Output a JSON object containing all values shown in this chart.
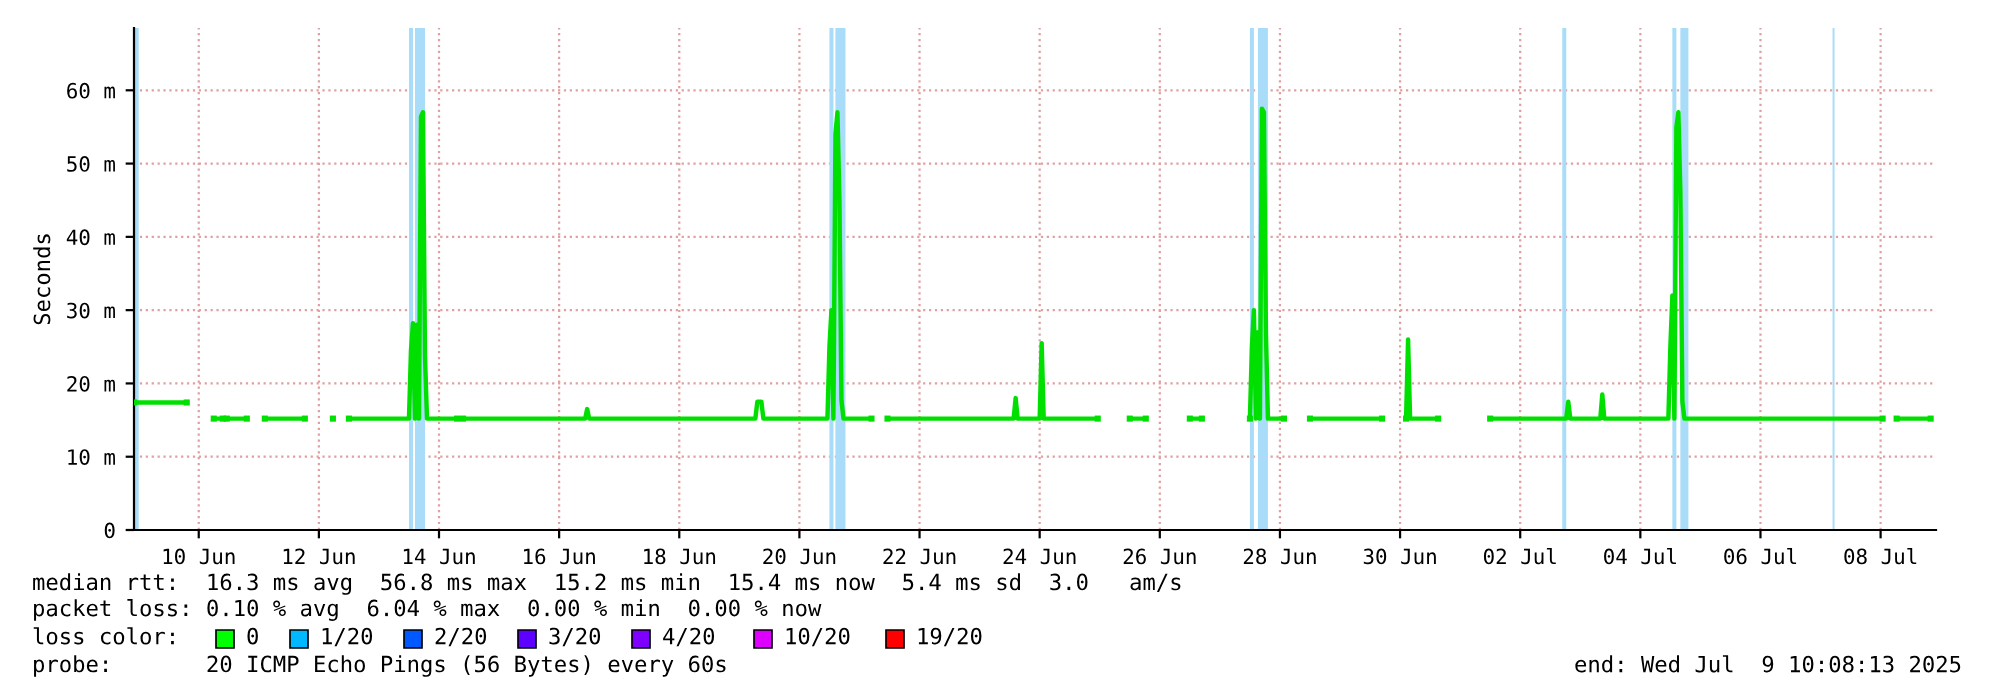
{
  "chart_data": {
    "type": "line",
    "ylabel": "Seconds",
    "x": [
      "2025-06-09T10:08",
      "2025-06-10T07:12",
      "2025-06-10T07:26",
      "2025-06-10T18:00",
      "2025-06-10T21:36",
      "2025-06-10T21:41",
      "2025-06-10T23:12",
      "2025-06-11T07:12",
      "2025-06-11T07:26",
      "2025-06-11T14:24",
      "2025-06-12T06:24",
      "2025-06-12T06:29",
      "2025-06-12T17:36",
      "2025-06-12T17:46",
      "2025-06-13T00:00",
      "2025-06-14T00:00",
      "2025-06-14T00:48",
      "2025-06-14T01:36",
      "2025-06-14T02:24",
      "2025-06-14T03:12",
      "2025-06-14T04:00",
      "2025-06-14T04:48",
      "2025-06-14T05:36",
      "2025-06-14T06:24",
      "2025-06-14T07:12",
      "2025-06-14T19:12",
      "2025-06-14T19:26",
      "2025-06-14T21:36",
      "2025-06-16T22:24",
      "2025-06-16T23:12",
      "2025-06-17T00:00",
      "2025-06-19T18:24",
      "2025-06-19T19:12",
      "2025-06-19T20:48",
      "2025-06-19T21:36",
      "2025-06-20T23:12",
      "2025-06-21T00:00",
      "2025-06-21T00:48",
      "2025-06-21T01:36",
      "2025-06-21T02:24",
      "2025-06-21T03:12",
      "2025-06-21T04:00",
      "2025-06-21T04:48",
      "2025-06-21T05:36",
      "2025-06-21T06:24",
      "2025-06-21T16:48",
      "2025-06-21T17:02",
      "2025-06-21T23:12",
      "2025-06-23T12:48",
      "2025-06-23T16:48",
      "2025-06-23T20:48",
      "2025-06-24T01:36",
      "2025-06-24T02:24",
      "2025-06-24T03:12",
      "2025-06-24T06:24",
      "2025-06-24T12:00",
      "2025-06-24T12:48",
      "2025-06-24T13:36",
      "2025-06-25T11:12",
      "2025-06-25T11:17",
      "2025-06-26T00:00",
      "2025-06-26T06:24",
      "2025-06-26T06:29",
      "2025-06-27T00:00",
      "2025-06-27T04:48",
      "2025-06-27T05:02",
      "2025-06-28T00:00",
      "2025-06-28T00:48",
      "2025-06-28T01:36",
      "2025-06-28T02:24",
      "2025-06-28T03:12",
      "2025-06-28T04:00",
      "2025-06-28T04:48",
      "2025-06-28T05:36",
      "2025-06-28T06:24",
      "2025-06-28T07:12",
      "2025-06-28T13:36",
      "2025-06-28T13:41",
      "2025-06-29T00:00",
      "2025-06-30T04:48",
      "2025-06-30T05:02",
      "2025-06-30T14:24",
      "2025-06-30T15:12",
      "2025-06-30T16:00",
      "2025-07-01T03:12",
      "2025-07-01T03:22",
      "2025-07-02T00:00",
      "2025-07-03T06:24",
      "2025-07-03T07:12",
      "2025-07-03T08:00",
      "2025-07-03T10:24",
      "2025-07-03T20:00",
      "2025-07-03T20:48",
      "2025-07-03T21:36",
      "2025-07-04T20:48",
      "2025-07-04T23:12",
      "2025-07-05T00:00",
      "2025-07-05T00:48",
      "2025-07-05T01:36",
      "2025-07-05T02:24",
      "2025-07-05T03:12",
      "2025-07-05T04:00",
      "2025-07-05T04:48",
      "2025-07-05T05:36",
      "2025-07-05T06:24",
      "2025-07-05T07:12",
      "2025-07-08T12:48",
      "2025-07-08T13:00",
      "2025-07-08T18:24",
      "2025-07-09T08:00"
    ],
    "series": [
      {
        "color": "#00e000",
        "values": [
          17.4,
          17.4,
          null,
          15.2,
          15.2,
          null,
          15.2,
          15.2,
          null,
          15.2,
          15.2,
          null,
          15.2,
          null,
          15.2,
          15.2,
          24.5,
          28.2,
          15.2,
          28,
          15.2,
          56.4,
          57,
          23.7,
          15.2,
          15.2,
          null,
          15.2,
          15.2,
          16.5,
          15.2,
          15.2,
          17.5,
          17.5,
          15.2,
          15.2,
          25,
          30,
          15.2,
          54,
          57,
          45,
          17.7,
          15.2,
          15.2,
          15.2,
          null,
          15.2,
          15.2,
          15.2,
          15.2,
          15.2,
          18,
          15.2,
          15.2,
          15.2,
          25.5,
          15.2,
          15.2,
          null,
          15.2,
          15.2,
          null,
          15.2,
          15.2,
          null,
          15.2,
          25,
          30,
          15.2,
          27,
          15.2,
          57.5,
          57,
          27,
          15.2,
          15.2,
          null,
          15.2,
          15.2,
          null,
          15.2,
          26,
          15.2,
          15.2,
          null,
          15.2,
          15.2,
          17.5,
          15.2,
          15.2,
          15.2,
          18.5,
          15.2,
          15.2,
          15.2,
          25,
          32,
          15.2,
          55,
          57,
          46,
          17.5,
          15.2,
          15.2,
          15.2,
          15.2,
          null,
          15.2,
          15.2
        ]
      }
    ],
    "xlim": [
      "2025-06-09T10:08",
      "2025-07-09T10:08"
    ],
    "xticks": [
      {
        "value": "2025-06-10T12:00",
        "label": "10 Jun"
      },
      {
        "value": "2025-06-12T12:00",
        "label": "12 Jun"
      },
      {
        "value": "2025-06-14T12:00",
        "label": "14 Jun"
      },
      {
        "value": "2025-06-16T12:00",
        "label": "16 Jun"
      },
      {
        "value": "2025-06-18T12:00",
        "label": "18 Jun"
      },
      {
        "value": "2025-06-20T12:00",
        "label": "20 Jun"
      },
      {
        "value": "2025-06-22T12:00",
        "label": "22 Jun"
      },
      {
        "value": "2025-06-24T12:00",
        "label": "24 Jun"
      },
      {
        "value": "2025-06-26T12:00",
        "label": "26 Jun"
      },
      {
        "value": "2025-06-28T12:00",
        "label": "28 Jun"
      },
      {
        "value": "2025-06-30T12:00",
        "label": "30 Jun"
      },
      {
        "value": "2025-07-02T12:00",
        "label": "02 Jul"
      },
      {
        "value": "2025-07-04T12:00",
        "label": "04 Jul"
      },
      {
        "value": "2025-07-06T12:00",
        "label": "06 Jul"
      },
      {
        "value": "2025-07-08T12:00",
        "label": "08 Jul"
      }
    ],
    "ylim": [
      0,
      68.5
    ],
    "yticks": [
      0,
      {
        "value": 10,
        "label": "10 m"
      },
      {
        "value": 20,
        "label": "20 m"
      },
      {
        "value": 30,
        "label": "30 m"
      },
      {
        "value": 40,
        "label": "40 m"
      },
      {
        "value": 50,
        "label": "50 m"
      },
      {
        "value": 60,
        "label": "60 m"
      }
    ],
    "grid": true,
    "line_style": "solid",
    "marker": "none",
    "bands": [
      {
        "axis": "x",
        "from": "2025-06-09T10:08",
        "to": "2025-06-09T12:00",
        "color": "#a8dcf8"
      },
      {
        "axis": "x",
        "from": "2025-06-14T00:00",
        "to": "2025-06-14T01:36",
        "color": "#a8dcf8"
      },
      {
        "axis": "x",
        "from": "2025-06-14T02:24",
        "to": "2025-06-14T06:24",
        "color": "#a8dcf8"
      },
      {
        "axis": "x",
        "from": "2025-06-21T00:00",
        "to": "2025-06-21T01:36",
        "color": "#a8dcf8"
      },
      {
        "axis": "x",
        "from": "2025-06-21T02:24",
        "to": "2025-06-21T06:24",
        "color": "#a8dcf8"
      },
      {
        "axis": "x",
        "from": "2025-06-28T00:00",
        "to": "2025-06-28T01:36",
        "color": "#a8dcf8"
      },
      {
        "axis": "x",
        "from": "2025-06-28T03:12",
        "to": "2025-06-28T07:12",
        "color": "#a8dcf8"
      },
      {
        "axis": "x",
        "from": "2025-07-03T04:48",
        "to": "2025-07-03T06:24",
        "color": "#a8dcf8"
      },
      {
        "axis": "x",
        "from": "2025-07-05T00:48",
        "to": "2025-07-05T02:24",
        "color": "#a8dcf8"
      },
      {
        "axis": "x",
        "from": "2025-07-05T04:00",
        "to": "2025-07-05T07:12",
        "color": "#a8dcf8"
      },
      {
        "axis": "x",
        "from": "2025-07-07T16:48",
        "to": "2025-07-07T17:36",
        "color": "#a8dcf8"
      }
    ],
    "annotations": [
      "median rtt:  16.3 ms avg  56.8 ms max  15.2 ms min  15.4 ms now  5.4 ms sd  3.0   am/s",
      "packet loss: 0.10 % avg  6.04 % max  0.00 % min  0.00 % now",
      "loss color:",
      "0",
      "1/20",
      "2/20",
      "3/20",
      "4/20",
      "10/20",
      "19/20",
      "probe:       20 ICMP Echo Pings (56 Bytes) every 60s",
      "end: Wed Jul  9 10:08:13 2025"
    ]
  }
}
